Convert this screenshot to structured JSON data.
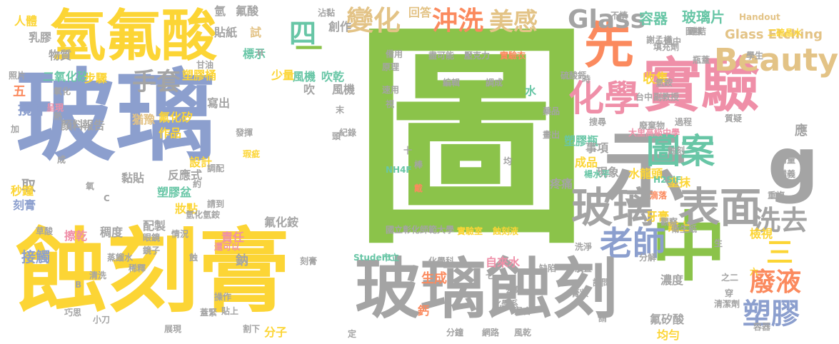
{
  "colors": {
    "green": "#8bc34a",
    "yellow": "#fcd535",
    "blue": "#8c9fce",
    "gray": "#a4a4a4",
    "pink": "#ef8fa8",
    "orange": "#fb8a5e",
    "teal": "#68c6a6",
    "tan": "#e3c386"
  },
  "words": [
    {
      "text": "圖",
      "color": "green"
    },
    {
      "text": "玻璃",
      "color": "blue"
    },
    {
      "text": "蝕刻膏",
      "color": "yellow"
    },
    {
      "text": "氫氟酸",
      "color": "yellow"
    },
    {
      "text": "玻璃蝕刻",
      "color": "gray"
    },
    {
      "text": "中",
      "color": "green"
    },
    {
      "text": "實驗",
      "color": "pink"
    },
    {
      "text": "示",
      "color": "gray"
    },
    {
      "text": "先",
      "color": "orange"
    },
    {
      "text": "g",
      "color": "gray"
    },
    {
      "text": "玻璃",
      "color": "gray"
    },
    {
      "text": "表面",
      "color": "gray"
    },
    {
      "text": "圖案",
      "color": "teal"
    },
    {
      "text": "化學",
      "color": "pink"
    },
    {
      "text": "Beauty",
      "color": "tan"
    },
    {
      "text": "Glass",
      "color": "gray"
    },
    {
      "text": "變化",
      "color": "tan"
    },
    {
      "text": "沖洗",
      "color": "orange"
    },
    {
      "text": "美感",
      "color": "tan"
    },
    {
      "text": "容器",
      "color": "teal"
    },
    {
      "text": "玻璃片",
      "color": "teal"
    },
    {
      "text": "Glass Etching",
      "color": "tan"
    },
    {
      "text": "老師",
      "color": "blue"
    },
    {
      "text": "洗去",
      "color": "gray"
    },
    {
      "text": "廢液",
      "color": "orange"
    },
    {
      "text": "塑膠",
      "color": "blue"
    },
    {
      "text": "三",
      "color": "yellow"
    },
    {
      "text": "手套",
      "color": "gray"
    },
    {
      "text": "四",
      "color": "teal"
    },
    {
      "text": "一",
      "color": "green"
    },
    {
      "text": "風機",
      "color": "teal"
    },
    {
      "text": "吹乾",
      "color": "teal"
    },
    {
      "text": "吹",
      "color": "gray"
    },
    {
      "text": "風機",
      "color": "gray"
    },
    {
      "text": "氫",
      "color": "gray"
    },
    {
      "text": "氟酸",
      "color": "gray"
    },
    {
      "text": "貼紙",
      "color": "gray"
    },
    {
      "text": "試",
      "color": "tan"
    },
    {
      "text": "標示",
      "color": "teal"
    },
    {
      "text": "塑膠桶",
      "color": "yellow"
    },
    {
      "text": "少量",
      "color": "yellow"
    },
    {
      "text": "創作",
      "color": "gray"
    },
    {
      "text": "回答",
      "color": "tan"
    },
    {
      "text": "收集",
      "color": "yellow"
    },
    {
      "text": "氟化矽",
      "color": "yellow"
    },
    {
      "text": "寫出",
      "color": "gray"
    },
    {
      "text": "作品",
      "color": "yellow"
    },
    {
      "text": "反應式",
      "color": "gray"
    },
    {
      "text": "設計",
      "color": "yellow"
    },
    {
      "text": "塑膠盆",
      "color": "teal"
    },
    {
      "text": "稠度",
      "color": "gray"
    },
    {
      "text": "氟化銨",
      "color": "gray"
    },
    {
      "text": "配製",
      "color": "gray"
    },
    {
      "text": "塑膠瓶",
      "color": "teal"
    },
    {
      "text": "成品",
      "color": "yellow"
    },
    {
      "text": "現象",
      "color": "gray"
    },
    {
      "text": "水龍頭",
      "color": "yellow"
    },
    {
      "text": "塗抹",
      "color": "yellow"
    },
    {
      "text": "牙膏",
      "color": "yellow"
    },
    {
      "text": "檢視",
      "color": "yellow"
    },
    {
      "text": "戴上",
      "color": "yellow"
    },
    {
      "text": "疼痛",
      "color": "gray"
    },
    {
      "text": "濃度",
      "color": "gray"
    },
    {
      "text": "氟矽酸",
      "color": "gray"
    },
    {
      "text": "均勻",
      "color": "yellow"
    },
    {
      "text": "自來水",
      "color": "pink"
    },
    {
      "text": "生成",
      "color": "orange"
    },
    {
      "text": "分子",
      "color": "yellow"
    },
    {
      "text": "鈣",
      "color": "orange"
    },
    {
      "text": "鈉",
      "color": "gray"
    },
    {
      "text": "攪拌",
      "color": "blue"
    },
    {
      "text": "二氧化矽",
      "color": "teal"
    },
    {
      "text": "步驟",
      "color": "yellow"
    },
    {
      "text": "物質",
      "color": "gray"
    },
    {
      "text": "乳膠",
      "color": "gray"
    },
    {
      "text": "人體",
      "color": "yellow"
    },
    {
      "text": "五",
      "color": "orange"
    },
    {
      "text": "接觸",
      "color": "blue"
    },
    {
      "text": "取",
      "color": "gray"
    },
    {
      "text": "刻膏",
      "color": "blue"
    },
    {
      "text": "秒鐘",
      "color": "yellow"
    },
    {
      "text": "報告",
      "color": "gray"
    },
    {
      "text": "顏料",
      "color": "gray"
    },
    {
      "text": "猶豫",
      "color": "tan"
    },
    {
      "text": "黏貼",
      "color": "gray"
    },
    {
      "text": "妝點",
      "color": "yellow"
    },
    {
      "text": "水",
      "color": "teal"
    },
    {
      "text": "事項",
      "color": "gray"
    },
    {
      "text": "大里高級中學",
      "color": "pink"
    },
    {
      "text": "國立彰化師範大學",
      "color": "gray"
    },
    {
      "text": "實驗室",
      "color": "yellow"
    },
    {
      "text": "蝕刻液",
      "color": "yellow"
    },
    {
      "text": "實驗衣",
      "color": "orange"
    },
    {
      "text": "盡可能",
      "color": "gray"
    },
    {
      "text": "壓克力",
      "color": "gray"
    },
    {
      "text": "備用",
      "color": "gray"
    },
    {
      "text": "原理",
      "color": "gray"
    },
    {
      "text": "編輯",
      "color": "gray"
    },
    {
      "text": "調成",
      "color": "gray"
    },
    {
      "text": "謝孟樺",
      "color": "gray"
    },
    {
      "text": "圖樣",
      "color": "gray"
    },
    {
      "text": "連結",
      "color": "gray"
    },
    {
      "text": "填充劑",
      "color": "gray"
    },
    {
      "text": "適中",
      "color": "gray"
    },
    {
      "text": "瓶蓋",
      "color": "gray"
    },
    {
      "text": "學生",
      "color": "gray"
    },
    {
      "text": "二硫晶水",
      "color": "yellow"
    },
    {
      "text": "硫酸鈣",
      "color": "gray"
    },
    {
      "text": "氫銨",
      "color": "gray"
    },
    {
      "text": "副教授",
      "color": "gray"
    },
    {
      "text": "過程",
      "color": "gray"
    },
    {
      "text": "廢棄物",
      "color": "gray"
    },
    {
      "text": "質疑",
      "color": "gray"
    },
    {
      "text": "H2SiF",
      "color": "teal"
    },
    {
      "text": "NH4F",
      "color": "teal"
    },
    {
      "text": "Student",
      "color": "teal"
    },
    {
      "text": "Handout",
      "color": "tan"
    },
    {
      "text": "蝕刻",
      "color": "gray"
    },
    {
      "text": "楊水平",
      "color": "teal"
    },
    {
      "text": "重複",
      "color": "gray"
    },
    {
      "text": "講義",
      "color": "gray"
    },
    {
      "text": "滴落",
      "color": "orange"
    },
    {
      "text": "衛生紙",
      "color": "gray"
    },
    {
      "text": "洗淨",
      "color": "gray"
    },
    {
      "text": "放置",
      "color": "gray"
    },
    {
      "text": "缺陷",
      "color": "gray"
    },
    {
      "text": "膏狀",
      "color": "gray"
    },
    {
      "text": "清潔劑",
      "color": "gray"
    },
    {
      "text": "容器",
      "color": "gray"
    },
    {
      "text": "丟棄",
      "color": "gray"
    },
    {
      "text": "化學系",
      "color": "gray"
    },
    {
      "text": "化學科",
      "color": "gray"
    },
    {
      "text": "市立",
      "color": "teal"
    },
    {
      "text": "混合",
      "color": "gray"
    },
    {
      "text": "分鐘",
      "color": "gray"
    },
    {
      "text": "網路",
      "color": "gray"
    },
    {
      "text": "風乾",
      "color": "gray"
    },
    {
      "text": "展現",
      "color": "gray"
    },
    {
      "text": "蓋緊",
      "color": "gray"
    },
    {
      "text": "割下",
      "color": "gray"
    },
    {
      "text": "巧思",
      "color": "gray"
    },
    {
      "text": "操作",
      "color": "gray"
    },
    {
      "text": "貼上",
      "color": "gray"
    },
    {
      "text": "擦乾",
      "color": "pink"
    },
    {
      "text": "草酸",
      "color": "gray"
    },
    {
      "text": "蒸餾水",
      "color": "gray"
    },
    {
      "text": "眼鏡",
      "color": "gray"
    },
    {
      "text": "鏡子",
      "color": "gray"
    },
    {
      "text": "情況",
      "color": "gray"
    },
    {
      "text": "責任",
      "color": "pink"
    },
    {
      "text": "還可以",
      "color": "pink"
    },
    {
      "text": "氫化氫銨",
      "color": "gray"
    },
    {
      "text": "請到",
      "color": "gray"
    },
    {
      "text": "調配",
      "color": "gray"
    },
    {
      "text": "瑕疵",
      "color": "yellow"
    },
    {
      "text": "清洗",
      "color": "gray"
    },
    {
      "text": "稀釋",
      "color": "gray"
    },
    {
      "text": "刻膏",
      "color": "gray"
    },
    {
      "text": "沾黏",
      "color": "gray"
    },
    {
      "text": "不慎",
      "color": "gray"
    },
    {
      "text": "照片",
      "color": "gray"
    },
    {
      "text": "呈現",
      "color": "pink"
    },
    {
      "text": "氧化",
      "color": "gray"
    },
    {
      "text": "甘油",
      "color": "gray"
    },
    {
      "text": "紀錄",
      "color": "gray"
    },
    {
      "text": "發揮",
      "color": "gray"
    },
    {
      "text": "用量",
      "color": "gray"
    },
    {
      "text": "觀察",
      "color": "gray"
    },
    {
      "text": "搜尋",
      "color": "gray"
    },
    {
      "text": "台中",
      "color": "gray"
    },
    {
      "text": "時",
      "color": "gray"
    },
    {
      "text": "應",
      "color": "gray"
    },
    {
      "text": "六",
      "color": "yellow"
    },
    {
      "text": "七",
      "color": "gray"
    },
    {
      "text": "生",
      "color": "gray"
    },
    {
      "text": "之二",
      "color": "gray"
    },
    {
      "text": "穿",
      "color": "gray"
    },
    {
      "text": "詢問",
      "color": "gray"
    },
    {
      "text": "分解",
      "color": "gray"
    },
    {
      "text": "約",
      "color": "gray"
    },
    {
      "text": "請",
      "color": "gray"
    },
    {
      "text": "定",
      "color": "gray"
    },
    {
      "text": "熱",
      "color": "gray"
    },
    {
      "text": "加",
      "color": "gray"
    },
    {
      "text": "末",
      "color": "gray"
    },
    {
      "text": "成",
      "color": "gray"
    },
    {
      "text": "頭",
      "color": "gray"
    },
    {
      "text": "速用",
      "color": "gray"
    },
    {
      "text": "視",
      "color": "gray"
    },
    {
      "text": "棒",
      "color": "gray"
    },
    {
      "text": "戴",
      "color": "orange"
    },
    {
      "text": "均",
      "color": "gray"
    },
    {
      "text": "藥品",
      "color": "gray"
    },
    {
      "text": "畫出",
      "color": "gray"
    },
    {
      "text": "十",
      "color": "gray"
    },
    {
      "text": "蝕",
      "color": "gray"
    },
    {
      "text": "小刀",
      "color": "gray"
    },
    {
      "text": "氧",
      "color": "gray"
    },
    {
      "text": "B",
      "color": "gray"
    },
    {
      "text": "C",
      "color": "gray"
    },
    {
      "text": "A",
      "color": "gray"
    },
    {
      "text": "II",
      "color": "gray"
    },
    {
      "text": "I",
      "color": "gray"
    },
    {
      "text": "穩定",
      "color": "gray"
    },
    {
      "text": "七",
      "color": "gray"
    },
    {
      "text": "成",
      "color": "gray"
    }
  ]
}
